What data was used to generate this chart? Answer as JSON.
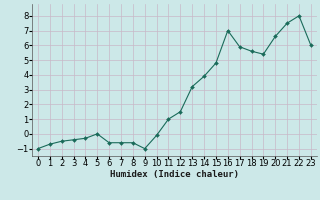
{
  "x": [
    0,
    1,
    2,
    3,
    4,
    5,
    6,
    7,
    8,
    9,
    10,
    11,
    12,
    13,
    14,
    15,
    16,
    17,
    18,
    19,
    20,
    21,
    22,
    23
  ],
  "y": [
    -1.0,
    -0.7,
    -0.5,
    -0.4,
    -0.3,
    0.0,
    -0.6,
    -0.6,
    -0.6,
    -1.0,
    -0.1,
    1.0,
    1.5,
    3.2,
    3.9,
    4.8,
    7.0,
    5.9,
    5.6,
    5.4,
    6.6,
    7.5,
    8.0,
    6.0
  ],
  "line_color": "#1a6b5a",
  "marker_color": "#1a6b5a",
  "bg_color": "#cce8e8",
  "grid_color": "#c8b8c8",
  "xlabel": "Humidex (Indice chaleur)",
  "xlim": [
    -0.5,
    23.5
  ],
  "ylim": [
    -1.5,
    8.8
  ],
  "yticks": [
    -1,
    0,
    1,
    2,
    3,
    4,
    5,
    6,
    7,
    8
  ],
  "xticks": [
    0,
    1,
    2,
    3,
    4,
    5,
    6,
    7,
    8,
    9,
    10,
    11,
    12,
    13,
    14,
    15,
    16,
    17,
    18,
    19,
    20,
    21,
    22,
    23
  ],
  "xlabel_fontsize": 6.5,
  "tick_fontsize": 6.0
}
